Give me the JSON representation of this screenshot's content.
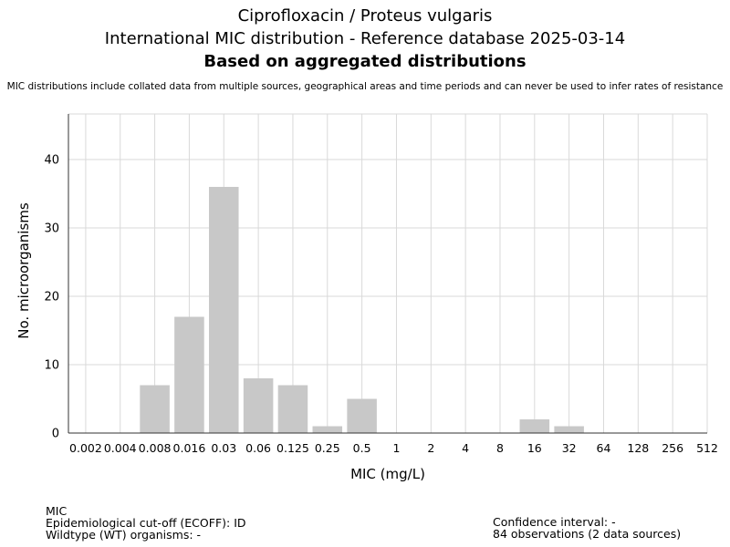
{
  "header": {
    "title_line1": "Ciprofloxacin / Proteus vulgaris",
    "title_line2": "International MIC distribution - Reference database 2025-03-14",
    "title_line3": "Based on aggregated distributions",
    "disclaimer": "MIC distributions include collated data from multiple sources, geographical areas and time periods and can never be used to infer rates of resistance"
  },
  "chart_data": {
    "type": "bar",
    "categories": [
      "0.002",
      "0.004",
      "0.008",
      "0.016",
      "0.03",
      "0.06",
      "0.125",
      "0.25",
      "0.5",
      "1",
      "2",
      "4",
      "8",
      "16",
      "32",
      "64",
      "128",
      "256",
      "512"
    ],
    "values": [
      0,
      0,
      7,
      17,
      36,
      8,
      7,
      1,
      5,
      0,
      0,
      0,
      0,
      2,
      1,
      0,
      0,
      0,
      0
    ],
    "xlabel": "MIC (mg/L)",
    "ylabel": "No. microorganisms",
    "ylim": [
      0,
      46.67
    ],
    "yticks": [
      0,
      10,
      20,
      30,
      40
    ],
    "grid": true,
    "bar_color": "#c8c8c8"
  },
  "footer": {
    "mic_label": "MIC",
    "ecoff": "Epidemiological cut-off (ECOFF): ID",
    "wildtype": "Wildtype (WT) organisms:  -",
    "confidence": "Confidence interval: -",
    "observations": "84 observations (2 data sources)"
  }
}
